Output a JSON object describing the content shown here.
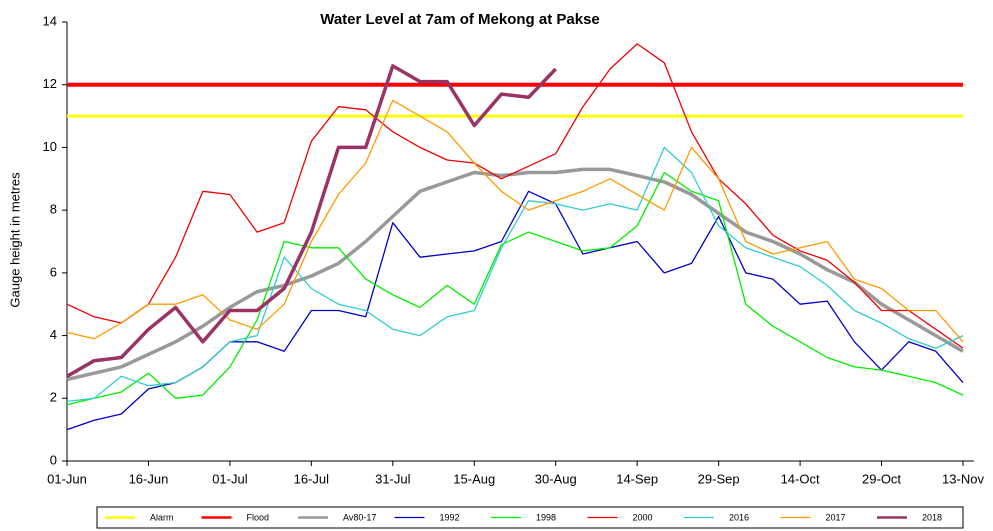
{
  "chart_data": {
    "type": "line",
    "title": "Water Level at 7am of Mekong at Pakse",
    "y_label": "Gauge height in metres",
    "x": [
      0,
      5,
      10,
      15,
      20,
      25,
      30,
      35,
      40,
      45,
      50,
      55,
      60,
      65,
      70,
      75,
      80,
      85,
      90,
      95,
      100,
      105,
      110,
      115,
      120,
      125,
      130,
      135,
      140,
      145,
      150,
      155,
      160,
      165
    ],
    "xlim": [
      0,
      167
    ],
    "xticks": [
      {
        "value": 0,
        "label": "01-Jun"
      },
      {
        "value": 15,
        "label": "16-Jun"
      },
      {
        "value": 30,
        "label": "01-Jul"
      },
      {
        "value": 45,
        "label": "16-Jul"
      },
      {
        "value": 60,
        "label": "31-Jul"
      },
      {
        "value": 75,
        "label": "15-Aug"
      },
      {
        "value": 90,
        "label": "30-Aug"
      },
      {
        "value": 105,
        "label": "14-Sep"
      },
      {
        "value": 120,
        "label": "29-Sep"
      },
      {
        "value": 135,
        "label": "14-Oct"
      },
      {
        "value": 150,
        "label": "29-Oct"
      },
      {
        "value": 165,
        "label": "13-Nov"
      }
    ],
    "ylim": [
      0,
      14
    ],
    "yticks": [
      0,
      2,
      4,
      6,
      8,
      10,
      12,
      14
    ],
    "series": [
      {
        "name": "Alarm",
        "color": "#ffff00",
        "width": 3,
        "values": [
          11,
          11,
          11,
          11,
          11,
          11,
          11,
          11,
          11,
          11,
          11,
          11,
          11,
          11,
          11,
          11,
          11,
          11,
          11,
          11,
          11,
          11,
          11,
          11,
          11,
          11,
          11,
          11,
          11,
          11,
          11,
          11,
          11,
          11
        ]
      },
      {
        "name": "Flood",
        "color": "#ff0000",
        "width": 4,
        "values": [
          12,
          12,
          12,
          12,
          12,
          12,
          12,
          12,
          12,
          12,
          12,
          12,
          12,
          12,
          12,
          12,
          12,
          12,
          12,
          12,
          12,
          12,
          12,
          12,
          12,
          12,
          12,
          12,
          12,
          12,
          12,
          12,
          12,
          12
        ]
      },
      {
        "name": "Av80-17",
        "color": "#999999",
        "width": 3.5,
        "values": [
          2.6,
          2.8,
          3.0,
          3.4,
          3.8,
          4.3,
          4.9,
          5.4,
          5.6,
          5.9,
          6.3,
          7.0,
          7.8,
          8.6,
          8.9,
          9.2,
          9.1,
          9.2,
          9.2,
          9.3,
          9.3,
          9.1,
          8.9,
          8.5,
          7.9,
          7.3,
          7.0,
          6.6,
          6.1,
          5.7,
          5.0,
          4.5,
          4.0,
          3.5
        ]
      },
      {
        "name": "1992",
        "color": "#0000cc",
        "width": 1.3,
        "values": [
          1.0,
          1.3,
          1.5,
          2.3,
          2.5,
          3.0,
          3.8,
          3.8,
          3.5,
          4.8,
          4.8,
          4.6,
          7.6,
          6.5,
          6.6,
          6.7,
          7.0,
          8.6,
          8.2,
          6.6,
          6.8,
          7.0,
          6.0,
          6.3,
          7.8,
          6.0,
          5.8,
          5.0,
          5.1,
          3.8,
          2.9,
          3.8,
          3.5,
          2.5
        ]
      },
      {
        "name": "1998",
        "color": "#00ee00",
        "width": 1.3,
        "values": [
          1.8,
          2.0,
          2.2,
          2.8,
          2.0,
          2.1,
          3.0,
          4.5,
          7.0,
          6.8,
          6.8,
          5.8,
          5.3,
          4.9,
          5.6,
          5.0,
          6.9,
          7.3,
          7.0,
          6.7,
          6.8,
          7.5,
          9.2,
          8.6,
          8.3,
          5.0,
          4.3,
          3.8,
          3.3,
          3.0,
          2.9,
          2.7,
          2.5,
          2.1
        ]
      },
      {
        "name": "2000",
        "color": "#ee0000",
        "width": 1.3,
        "values": [
          5.0,
          4.6,
          4.4,
          5.0,
          6.5,
          8.6,
          8.5,
          7.3,
          7.6,
          10.2,
          11.3,
          11.2,
          10.5,
          10.0,
          9.6,
          9.5,
          9.0,
          9.4,
          9.8,
          11.3,
          12.5,
          13.3,
          12.7,
          10.5,
          9.0,
          8.2,
          7.2,
          6.7,
          6.4,
          5.7,
          4.8,
          4.8,
          4.2,
          3.6
        ]
      },
      {
        "name": "2016",
        "color": "#33cccc",
        "width": 1.3,
        "values": [
          1.9,
          2.0,
          2.7,
          2.4,
          2.5,
          3.0,
          3.8,
          4.0,
          6.5,
          5.5,
          5.0,
          4.8,
          4.2,
          4.0,
          4.6,
          4.8,
          6.8,
          8.3,
          8.2,
          8.0,
          8.2,
          8.0,
          10.0,
          9.2,
          7.5,
          6.8,
          6.5,
          6.2,
          5.6,
          4.8,
          4.4,
          3.9,
          3.6,
          4.0
        ]
      },
      {
        "name": "2017",
        "color": "#ff9900",
        "width": 1.3,
        "values": [
          4.1,
          3.9,
          4.4,
          5.0,
          5.0,
          5.3,
          4.5,
          4.2,
          5.0,
          7.0,
          8.5,
          9.5,
          11.5,
          11.0,
          10.5,
          9.5,
          8.6,
          8.0,
          8.3,
          8.6,
          9.0,
          8.5,
          8.0,
          10.0,
          9.0,
          7.0,
          6.6,
          6.8,
          7.0,
          5.8,
          5.5,
          4.8,
          4.8,
          3.8
        ]
      },
      {
        "name": "2018",
        "color": "#993366",
        "width": 3.5,
        "values": [
          2.7,
          3.2,
          3.3,
          4.2,
          4.9,
          3.8,
          4.8,
          4.8,
          5.5,
          7.3,
          10.0,
          10.0,
          12.6,
          12.1,
          12.1,
          10.7,
          11.7,
          11.6,
          12.5,
          null,
          null,
          null,
          null,
          null,
          null,
          null,
          null,
          null,
          null,
          null,
          null,
          null,
          null,
          null
        ]
      }
    ]
  }
}
